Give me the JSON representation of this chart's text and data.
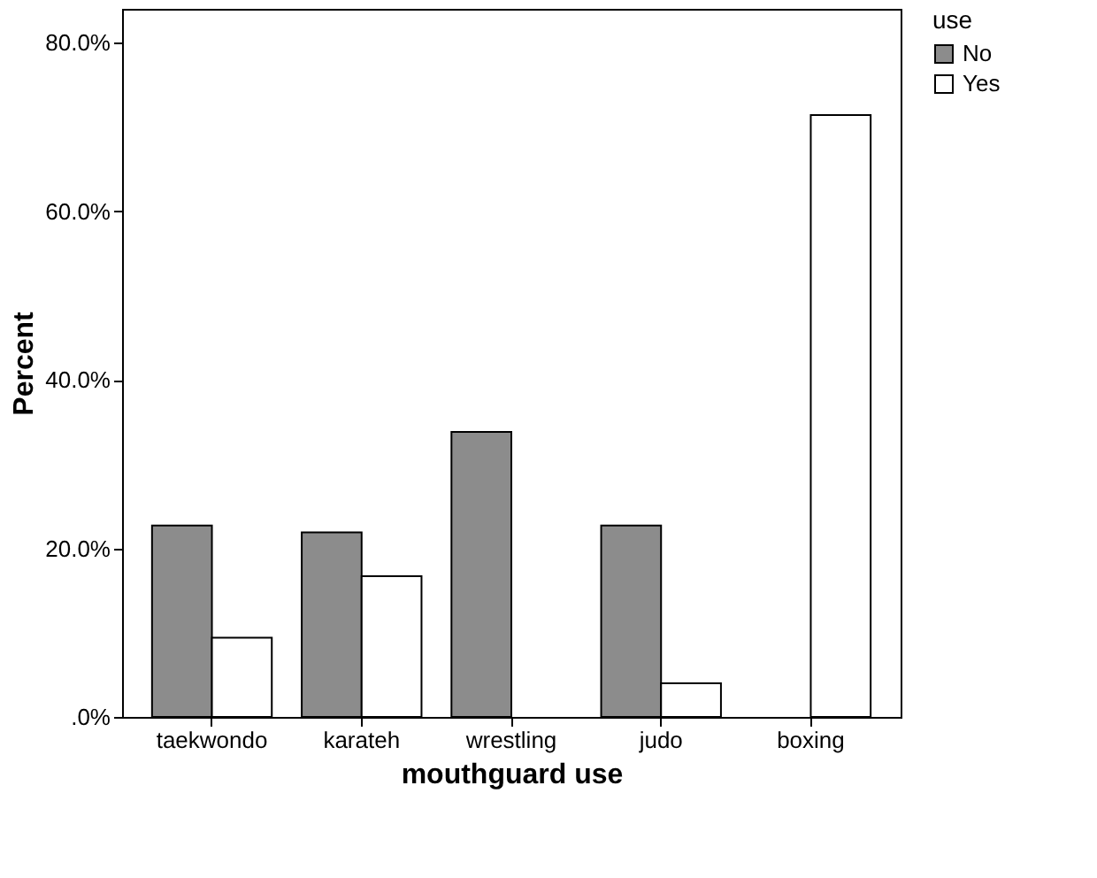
{
  "chart_data": {
    "type": "bar",
    "xlabel": "mouthguard use",
    "ylabel": "Percent",
    "legend_title": "use",
    "categories": [
      "taekwondo",
      "karateh",
      "wrestling",
      "judo",
      "boxing"
    ],
    "series": [
      {
        "name": "No",
        "color": "#8c8c8c",
        "values": [
          22.7,
          21.9,
          33.8,
          22.7,
          0
        ]
      },
      {
        "name": "Yes",
        "color": "#ffffff",
        "values": [
          9.4,
          16.7,
          0,
          4.0,
          71.4
        ]
      }
    ],
    "ylim": [
      0,
      84
    ],
    "yticks": [
      {
        "value": 0,
        "label": ".0%"
      },
      {
        "value": 20,
        "label": "20.0%"
      },
      {
        "value": 40,
        "label": "40.0%"
      },
      {
        "value": 60,
        "label": "60.0%"
      },
      {
        "value": 80,
        "label": "80.0%"
      }
    ],
    "grid": false,
    "legend": "top right"
  }
}
